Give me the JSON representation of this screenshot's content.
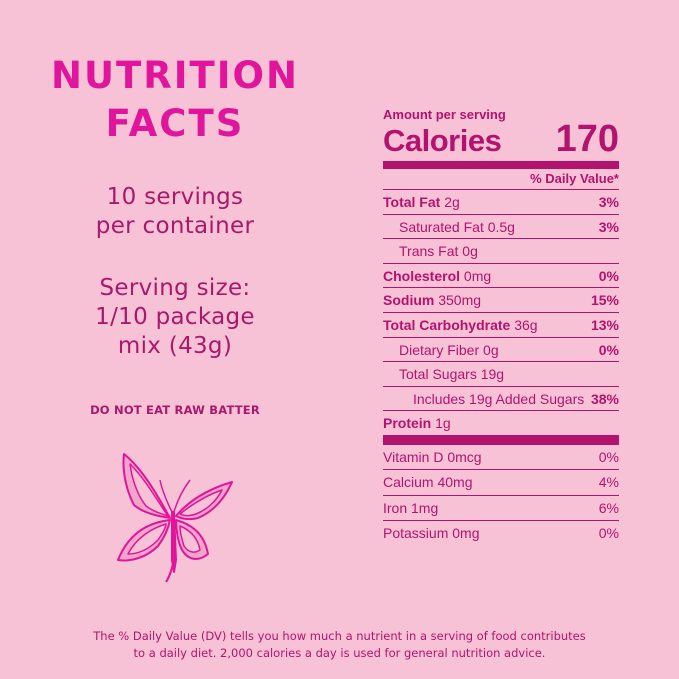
{
  "left": {
    "title_line1": "NUTRITION",
    "title_line2": "FACTS",
    "servings_line1": "10 servings",
    "servings_line2": "per container",
    "serving_size_line1": "Serving size:",
    "serving_size_line2": "1/10 package",
    "serving_size_line3": "mix (43g)",
    "warning": "DO NOT EAT RAW BATTER",
    "icon": "butterfly-icon"
  },
  "label": {
    "amount_per_serving": "Amount per serving",
    "calories_label": "Calories",
    "calories_value": "170",
    "dv_header": "% Daily Value*",
    "nutrients": [
      {
        "name": "Total Fat",
        "amount": "2g",
        "dv": "3%",
        "bold": true,
        "indent": 0
      },
      {
        "name": "Saturated Fat",
        "amount": "0.5g",
        "dv": "3%",
        "bold": false,
        "indent": 1
      },
      {
        "name": "Trans Fat",
        "amount": "0g",
        "dv": "",
        "bold": false,
        "indent": 1
      },
      {
        "name": "Cholesterol",
        "amount": "0mg",
        "dv": "0%",
        "bold": true,
        "indent": 0
      },
      {
        "name": "Sodium",
        "amount": "350mg",
        "dv": "15%",
        "bold": true,
        "indent": 0
      },
      {
        "name": "Total Carbohydrate",
        "amount": "36g",
        "dv": "13%",
        "bold": true,
        "indent": 0
      },
      {
        "name": "Dietary Fiber",
        "amount": "0g",
        "dv": "0%",
        "bold": false,
        "indent": 1
      },
      {
        "name": "Total Sugars",
        "amount": "19g",
        "dv": "",
        "bold": false,
        "indent": 1
      },
      {
        "name": "Includes 19g Added Sugars",
        "amount": "",
        "dv": "38%",
        "bold": false,
        "indent": 2
      },
      {
        "name": "Protein",
        "amount": "1g",
        "dv": "",
        "bold": true,
        "indent": 0
      }
    ],
    "vitamins": [
      {
        "name": "Vitamin D",
        "amount": "0mcg",
        "dv": "0%"
      },
      {
        "name": "Calcium",
        "amount": "40mg",
        "dv": "4%"
      },
      {
        "name": "Iron",
        "amount": "1mg",
        "dv": "6%"
      },
      {
        "name": "Potassium",
        "amount": "0mg",
        "dv": "0%"
      }
    ]
  },
  "footer": {
    "line1": "The % Daily Value (DV) tells you how much a nutrient in a serving of food contributes",
    "line2": "to a daily diet. 2,000 calories a day is used for general nutrition advice."
  },
  "colors": {
    "background": "#f7c2d6",
    "title": "#e0159b",
    "text": "#b4126f"
  }
}
